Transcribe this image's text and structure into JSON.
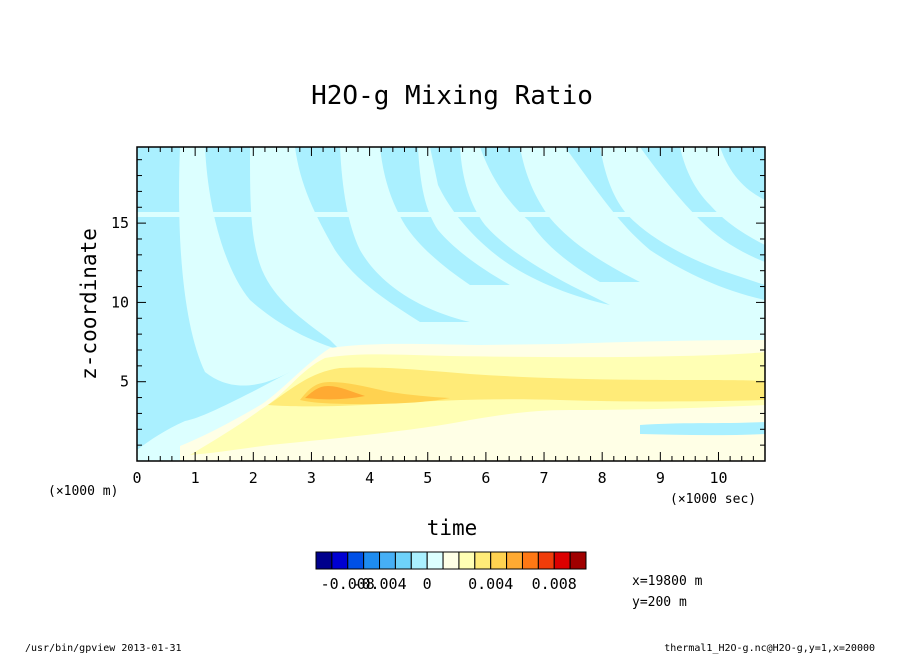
{
  "chart_data": {
    "type": "heatmap",
    "title": "H2O-g Mixing Ratio",
    "xlabel": "time",
    "ylabel": "z-coordinate",
    "x_unit_label": "(×1000 sec)",
    "y_unit_label": "(×1000 m)",
    "xlim": [
      0,
      10.8
    ],
    "ylim": [
      0,
      19.8
    ],
    "x_ticks": [
      "0",
      "1",
      "2",
      "3",
      "4",
      "5",
      "6",
      "7",
      "8",
      "9",
      "10"
    ],
    "y_ticks": [
      "5",
      "10",
      "15"
    ],
    "colorbar": {
      "levels": [
        -0.011,
        -0.01,
        -0.008,
        -0.006,
        -0.004,
        -0.002,
        -0.001,
        0,
        0.001,
        0.002,
        0.003,
        0.004,
        0.005,
        0.006,
        0.007,
        0.008,
        0.009,
        0.01
      ],
      "colors": [
        "#00008c",
        "#0000d2",
        "#0050e6",
        "#1e8cf0",
        "#46aff5",
        "#6ed2fa",
        "#aaf0ff",
        "#dcffff",
        "#ffffe6",
        "#ffffb4",
        "#ffeb78",
        "#ffd250",
        "#ffaa32",
        "#ff7814",
        "#f03c0a",
        "#dc0000",
        "#a00000"
      ],
      "tick_labels": [
        "-0.008",
        "-0.004",
        "0",
        "0.004",
        "0.008"
      ]
    },
    "field_regions": [
      {
        "level": "0.001 to 0.002",
        "description": "pale yellow layer",
        "x_range": [
          0.8,
          10.8
        ],
        "z_range": [
          0.5,
          7.5
        ]
      },
      {
        "level": "0.002 to 0.003",
        "description": "yellow band",
        "x_range": [
          2.3,
          10.8
        ],
        "z_range": [
          3.5,
          6.5
        ]
      },
      {
        "level": "0.003 to 0.005",
        "description": "orange core",
        "x_range": [
          2.8,
          4.3
        ],
        "z_range": [
          3.8,
          5.0
        ]
      },
      {
        "level": "-0.002 to -0.001",
        "description": "cyan upper region with oblique stripes",
        "x_range": [
          0,
          10.8
        ],
        "z_range": [
          3,
          19.8
        ]
      }
    ],
    "annotations": [
      "x=19800 m",
      "y=200 m"
    ]
  },
  "footer": {
    "left": "/usr/bin/gpview  2013-01-31",
    "right": "thermal1_H2O-g.nc@H2O-g,y=1,x=20000"
  }
}
